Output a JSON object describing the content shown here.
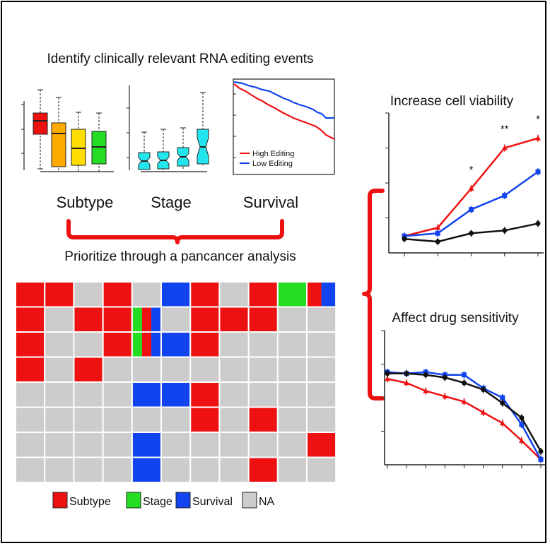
{
  "titles": {
    "top": "Identify clinically relevant RNA editing events",
    "prioritize": "Prioritize through a pancancer analysis",
    "viability": "Increase cell viability",
    "drug": "Affect drug sensitivity"
  },
  "panel_labels": {
    "subtype": "Subtype",
    "stage": "Stage",
    "survival": "Survival"
  },
  "survival_legend": {
    "high": "High Editing",
    "low": "Low Editing"
  },
  "significance": [
    "*",
    "**",
    "*"
  ],
  "colors": {
    "red": "#ee1111",
    "green": "#22dd22",
    "blue": "#1144ee",
    "gray": "#cccccc",
    "orange": "#ffaa00",
    "yellow": "#ffdd00",
    "cyan": "#22e5ee",
    "black": "#111111"
  },
  "heatmap": {
    "rows": [
      [
        "R",
        "R",
        "N",
        "R",
        "N",
        "B",
        "R",
        "N",
        "R",
        "G",
        "RB"
      ],
      [
        "R",
        "N",
        "R",
        "R",
        "GRB",
        "N",
        "R",
        "R",
        "R",
        "N",
        "N"
      ],
      [
        "R",
        "N",
        "N",
        "R",
        "GRB",
        "B",
        "R",
        "N",
        "N",
        "N",
        "N"
      ],
      [
        "R",
        "N",
        "R",
        "N",
        "N",
        "N",
        "N",
        "N",
        "N",
        "N",
        "N"
      ],
      [
        "N",
        "N",
        "N",
        "N",
        "B",
        "B",
        "R",
        "N",
        "N",
        "N",
        "N"
      ],
      [
        "N",
        "N",
        "N",
        "N",
        "N",
        "N",
        "R",
        "N",
        "R",
        "N",
        "N"
      ],
      [
        "N",
        "N",
        "N",
        "N",
        "B",
        "N",
        "N",
        "N",
        "N",
        "N",
        "R"
      ],
      [
        "N",
        "N",
        "N",
        "N",
        "B",
        "N",
        "N",
        "N",
        "R",
        "N",
        "N"
      ]
    ]
  },
  "legend": [
    {
      "label": "Subtype",
      "key": "R"
    },
    {
      "label": "Stage",
      "key": "G"
    },
    {
      "label": "Survival",
      "key": "B"
    },
    {
      "label": "NA",
      "key": "N"
    }
  ],
  "chart_data": [
    {
      "type": "line",
      "title": "Increase cell viability",
      "x": [
        1,
        2,
        3,
        4,
        5
      ],
      "series": [
        {
          "color": "red",
          "values": [
            0.12,
            0.18,
            0.46,
            0.75,
            0.82
          ]
        },
        {
          "color": "blue",
          "values": [
            0.12,
            0.14,
            0.31,
            0.41,
            0.58
          ]
        },
        {
          "color": "black",
          "values": [
            0.1,
            0.08,
            0.14,
            0.16,
            0.21
          ]
        }
      ],
      "ylim": [
        0,
        1
      ]
    },
    {
      "type": "line",
      "title": "Affect drug sensitivity",
      "x": [
        1,
        2,
        3,
        4,
        5,
        6,
        7,
        8,
        9
      ],
      "series": [
        {
          "color": "red",
          "values": [
            0.64,
            0.61,
            0.55,
            0.51,
            0.47,
            0.39,
            0.31,
            0.18,
            0.04
          ]
        },
        {
          "color": "blue",
          "values": [
            0.69,
            0.68,
            0.69,
            0.67,
            0.67,
            0.57,
            0.5,
            0.3,
            0.04
          ]
        },
        {
          "color": "black",
          "values": [
            0.68,
            0.68,
            0.67,
            0.65,
            0.61,
            0.56,
            0.46,
            0.35,
            0.1
          ]
        }
      ],
      "ylim": [
        0,
        1
      ]
    }
  ]
}
